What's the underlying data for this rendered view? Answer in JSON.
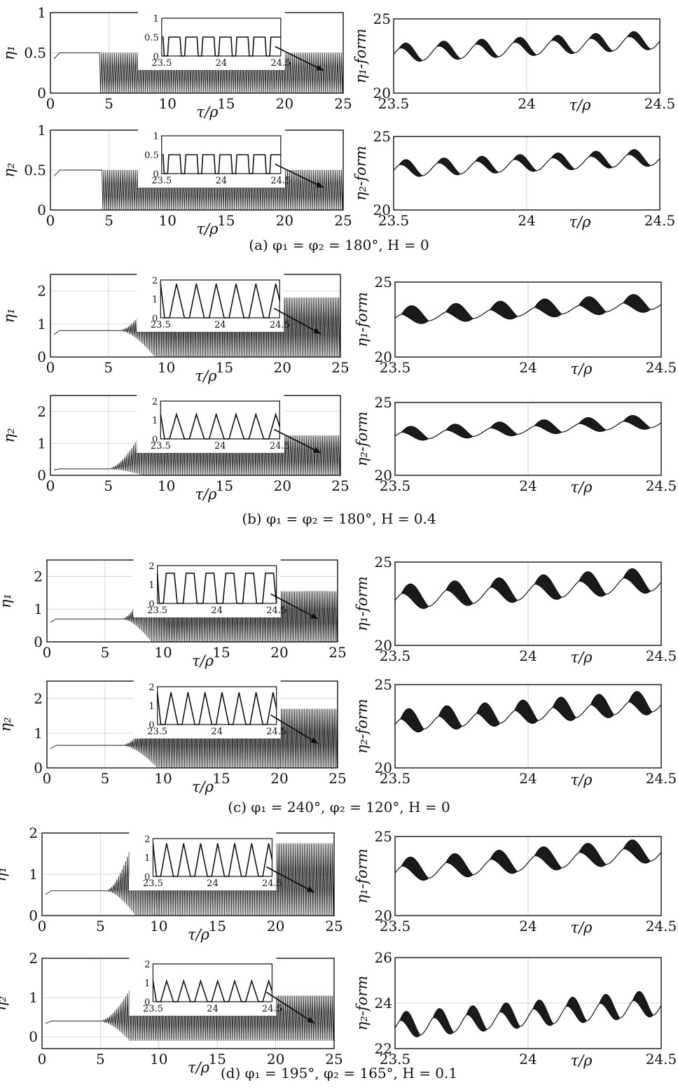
{
  "captions": [
    "(a) φ₁ = φ₂ = 180°, H = 0",
    "(b) φ₁ = φ₂ = 180°, H = 0.4",
    "(c) φ₁ = 240°, φ₂ = 120°, H = 0",
    "(d) φ₁ = 195°, φ₂ = 165°, H = 0.1"
  ],
  "chart_data": [
    {
      "panel": "a",
      "type": "line",
      "left_charts": [
        {
          "ylabel": "η₁",
          "xlabel": "τ/ρ",
          "xlim": [
            0,
            25
          ],
          "xticks": [
            0,
            5,
            10,
            15,
            20,
            25
          ],
          "ylim": [
            0,
            1
          ],
          "yticks": [
            "0",
            "0.5",
            "1"
          ],
          "series": {
            "initial_level": 0.5,
            "onset": 4.2,
            "band_low": 0.0,
            "band_high": 0.5,
            "steady_low": 0.0,
            "steady_high": 0.5
          },
          "inset": {
            "xlim": [
              23.5,
              24.5
            ],
            "xticks": [
              "23.5",
              "24",
              "24.5"
            ],
            "ylim": [
              0,
              1
            ],
            "yticks": [
              "0",
              "0.5",
              "1"
            ],
            "shape": "square",
            "low": 0.0,
            "high": 0.5,
            "cycles": 7
          }
        },
        {
          "ylabel": "η₂",
          "xlabel": "τ/ρ",
          "xlim": [
            0,
            25
          ],
          "xticks": [
            0,
            5,
            10,
            15,
            20,
            25
          ],
          "ylim": [
            0,
            1
          ],
          "yticks": [
            "0",
            "0.5",
            "1"
          ],
          "series": {
            "initial_level": 0.5,
            "onset": 4.4,
            "band_low": 0.0,
            "band_high": 0.5,
            "steady_low": 0.0,
            "steady_high": 0.5
          },
          "inset": {
            "xlim": [
              23.5,
              24.5
            ],
            "xticks": [
              "23.5",
              "24",
              "24.5"
            ],
            "ylim": [
              0,
              1
            ],
            "yticks": [
              "0",
              "0.5",
              "1"
            ],
            "shape": "square",
            "low": 0.0,
            "high": 0.5,
            "cycles": 7
          }
        }
      ],
      "right_charts": [
        {
          "ylabel": "η₁-form",
          "xlabel": "τ/ρ",
          "xlim": [
            23.5,
            24.5
          ],
          "xticks": [
            "23.5",
            "24",
            "24.5"
          ],
          "ylim": [
            20,
            25
          ],
          "yticks": [
            "20",
            "25"
          ],
          "base": 22.6,
          "trend": 0.9,
          "wave": 0.5,
          "band": 0.6,
          "cycles": 7
        },
        {
          "ylabel": "η₂-form",
          "xlabel": "τ/ρ",
          "xlim": [
            23.5,
            24.5
          ],
          "xticks": [
            "23.5",
            "24",
            "24.5"
          ],
          "ylim": [
            20,
            25
          ],
          "yticks": [
            "20",
            "25"
          ],
          "base": 22.7,
          "trend": 0.8,
          "wave": 0.45,
          "band": 0.6,
          "cycles": 7
        }
      ]
    },
    {
      "panel": "b",
      "type": "line",
      "left_charts": [
        {
          "ylabel": "η₁",
          "xlabel": "τ/ρ",
          "xlim": [
            0,
            25
          ],
          "xticks": [
            0,
            5,
            10,
            15,
            20,
            25
          ],
          "ylim": [
            0,
            2.5
          ],
          "yticks": [
            "0",
            "1",
            "2"
          ],
          "series": {
            "initial_level": 0.8,
            "onset": 6.0,
            "peak_at": 9.0,
            "peak_high": 2.0,
            "steady_low": 0.0,
            "steady_high": 1.8
          },
          "inset": {
            "xlim": [
              23.5,
              24.5
            ],
            "xticks": [
              "23.5",
              "24",
              "24.5"
            ],
            "ylim": [
              0,
              2
            ],
            "yticks": [
              "0",
              "1",
              "2"
            ],
            "shape": "triangle",
            "low": 0.0,
            "high": 1.8,
            "cycles": 6
          }
        },
        {
          "ylabel": "η₂",
          "xlabel": "τ/ρ",
          "xlim": [
            0,
            25
          ],
          "xticks": [
            0,
            5,
            10,
            15,
            20,
            25
          ],
          "ylim": [
            0,
            2.5
          ],
          "yticks": [
            "0",
            "1",
            "2"
          ],
          "series": {
            "initial_level": 0.2,
            "onset": 5.0,
            "peak_at": 8.0,
            "peak_high": 1.45,
            "steady_low": 0.0,
            "steady_high": 1.25
          },
          "inset": {
            "xlim": [
              23.5,
              24.5
            ],
            "xticks": [
              "23.5",
              "24",
              "24.5"
            ],
            "ylim": [
              0,
              2
            ],
            "yticks": [
              "0",
              "1",
              "2"
            ],
            "shape": "triangle",
            "low": 0.0,
            "high": 1.3,
            "cycles": 6
          }
        }
      ],
      "right_charts": [
        {
          "ylabel": "η₁-form",
          "xlabel": "τ/ρ",
          "xlim": [
            23.5,
            24.5
          ],
          "xticks": [
            "23.5",
            "24",
            "24.5"
          ],
          "ylim": [
            20,
            25
          ],
          "yticks": [
            "20",
            "25"
          ],
          "base": 22.6,
          "trend": 0.9,
          "wave": 0.3,
          "band": 1.0,
          "cycles": 6
        },
        {
          "ylabel": "η₂-form",
          "xlabel": "τ/ρ",
          "xlim": [
            23.5,
            24.5
          ],
          "xticks": [
            "23.5",
            "24",
            "24.5"
          ],
          "ylim": [
            20,
            25
          ],
          "yticks": [
            "20",
            "25"
          ],
          "base": 22.7,
          "trend": 0.9,
          "wave": 0.3,
          "band": 0.7,
          "cycles": 6
        }
      ]
    },
    {
      "panel": "c",
      "type": "line",
      "left_charts": [
        {
          "ylabel": "η₁",
          "xlabel": "τ/ρ",
          "xlim": [
            0,
            25
          ],
          "xticks": [
            0,
            5,
            10,
            15,
            20,
            25
          ],
          "ylim": [
            0,
            2.5
          ],
          "yticks": [
            "0",
            "1",
            "2"
          ],
          "series": {
            "initial_level": 0.7,
            "onset": 6.5,
            "peak_at": 9.0,
            "peak_high": 2.2,
            "steady_low": 0.0,
            "steady_high": 1.55
          },
          "inset": {
            "xlim": [
              23.5,
              24.5
            ],
            "xticks": [
              "23.5",
              "24",
              "24.5"
            ],
            "ylim": [
              0,
              2
            ],
            "yticks": [
              "0",
              "1",
              "2"
            ],
            "shape": "trapezoid",
            "low": 0.0,
            "high": 1.6,
            "cycles": 6
          }
        },
        {
          "ylabel": "η₂",
          "xlabel": "τ/ρ",
          "xlim": [
            0,
            25
          ],
          "xticks": [
            0,
            5,
            10,
            15,
            20,
            25
          ],
          "ylim": [
            0,
            2.5
          ],
          "yticks": [
            "0",
            "1",
            "2"
          ],
          "series": {
            "initial_level": 0.65,
            "onset": 6.5,
            "peak_at": 9.5,
            "peak_high": 1.75,
            "steady_low": 0.0,
            "steady_high": 1.7
          },
          "inset": {
            "xlim": [
              23.5,
              24.5
            ],
            "xticks": [
              "23.5",
              "24",
              "24.5"
            ],
            "ylim": [
              0,
              2
            ],
            "yticks": [
              "0",
              "1",
              "2"
            ],
            "shape": "triangle",
            "low": 0.0,
            "high": 1.7,
            "cycles": 7
          }
        }
      ],
      "right_charts": [
        {
          "ylabel": "η₁-form",
          "xlabel": "τ/ρ",
          "xlim": [
            23.5,
            24.5
          ],
          "xticks": [
            "23.5",
            "24",
            "24.5"
          ],
          "ylim": [
            20,
            25
          ],
          "yticks": [
            "20",
            "25"
          ],
          "base": 22.7,
          "trend": 1.1,
          "wave": 0.5,
          "band": 1.0,
          "cycles": 6
        },
        {
          "ylabel": "η₂-form",
          "xlabel": "τ/ρ",
          "xlim": [
            23.5,
            24.5
          ],
          "xticks": [
            "23.5",
            "24",
            "24.5"
          ],
          "ylim": [
            20,
            25
          ],
          "yticks": [
            "20",
            "25"
          ],
          "base": 22.6,
          "trend": 1.2,
          "wave": 0.4,
          "band": 1.1,
          "cycles": 7
        }
      ]
    },
    {
      "panel": "d",
      "type": "line",
      "left_charts": [
        {
          "ylabel": "η₁",
          "xlabel": "τ/ρ",
          "xlim": [
            0,
            25
          ],
          "xticks": [
            0,
            5,
            10,
            15,
            20,
            25
          ],
          "ylim": [
            0,
            2
          ],
          "yticks": [
            "0",
            "1",
            "2"
          ],
          "series": {
            "initial_level": 0.6,
            "onset": 5.5,
            "peak_at": 8.0,
            "peak_high": 2.0,
            "steady_low": 0.0,
            "steady_high": 1.75
          },
          "inset": {
            "xlim": [
              23.5,
              24.5
            ],
            "xticks": [
              "23.5",
              "24",
              "24.5"
            ],
            "ylim": [
              0,
              2
            ],
            "yticks": [
              "0",
              "1",
              "2"
            ],
            "shape": "triangle",
            "low": 0.0,
            "high": 1.75,
            "cycles": 7
          }
        },
        {
          "ylabel": "η₂",
          "xlabel": "τ/ρ",
          "xlim": [
            0,
            25
          ],
          "xticks": [
            0,
            5,
            10,
            15,
            20,
            25
          ],
          "ylim": [
            -0.3,
            2.0
          ],
          "yticks": [
            "0",
            "1",
            "2"
          ],
          "series": {
            "initial_level": 0.4,
            "onset": 5.0,
            "peak_at": 7.5,
            "peak_high": 1.2,
            "steady_low": -0.1,
            "steady_high": 1.05
          },
          "inset": {
            "xlim": [
              23.5,
              24.5
            ],
            "xticks": [
              "23.5",
              "24",
              "24.5"
            ],
            "ylim": [
              0,
              2
            ],
            "yticks": [
              "0",
              "1",
              "2"
            ],
            "shape": "triangle",
            "low": 0.0,
            "high": 1.1,
            "cycles": 7
          }
        }
      ],
      "right_charts": [
        {
          "ylabel": "η₁-form",
          "xlabel": "τ/ρ",
          "xlim": [
            23.5,
            24.5
          ],
          "xticks": [
            "23.5",
            "24",
            "24.5"
          ],
          "ylim": [
            20,
            25
          ],
          "yticks": [
            "20",
            "25"
          ],
          "base": 22.7,
          "trend": 1.3,
          "wave": 0.5,
          "band": 1.0,
          "cycles": 6
        },
        {
          "ylabel": "η₂-form",
          "xlabel": "τ/ρ",
          "xlim": [
            23.5,
            24.5
          ],
          "xticks": [
            "23.5",
            "24",
            "24.5"
          ],
          "ylim": [
            22,
            26
          ],
          "yticks": [
            "22",
            "24",
            "26"
          ],
          "base": 22.9,
          "trend": 1.0,
          "wave": 0.4,
          "band": 0.7,
          "cycles": 8
        }
      ]
    }
  ]
}
